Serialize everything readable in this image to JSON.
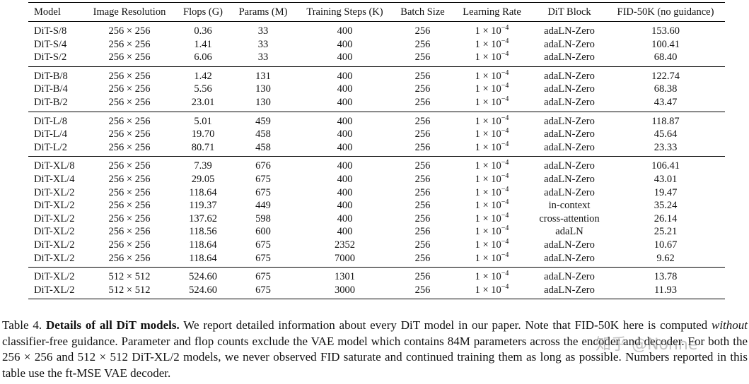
{
  "table": {
    "headers": [
      "Model",
      "Image Resolution",
      "Flops (G)",
      "Params (M)",
      "Training Steps (K)",
      "Batch Size",
      "Learning Rate",
      "DiT Block",
      "FID-50K (no guidance)"
    ],
    "groups": [
      [
        [
          "DiT-S/8",
          "256 × 256",
          "0.36",
          "33",
          "400",
          "256",
          {
            "mantissa": "1 × 10",
            "exponent": "−4"
          },
          "adaLN-Zero",
          "153.60"
        ],
        [
          "DiT-S/4",
          "256 × 256",
          "1.41",
          "33",
          "400",
          "256",
          {
            "mantissa": "1 × 10",
            "exponent": "−4"
          },
          "adaLN-Zero",
          "100.41"
        ],
        [
          "DiT-S/2",
          "256 × 256",
          "6.06",
          "33",
          "400",
          "256",
          {
            "mantissa": "1 × 10",
            "exponent": "−4"
          },
          "adaLN-Zero",
          "68.40"
        ]
      ],
      [
        [
          "DiT-B/8",
          "256 × 256",
          "1.42",
          "131",
          "400",
          "256",
          {
            "mantissa": "1 × 10",
            "exponent": "−4"
          },
          "adaLN-Zero",
          "122.74"
        ],
        [
          "DiT-B/4",
          "256 × 256",
          "5.56",
          "130",
          "400",
          "256",
          {
            "mantissa": "1 × 10",
            "exponent": "−4"
          },
          "adaLN-Zero",
          "68.38"
        ],
        [
          "DiT-B/2",
          "256 × 256",
          "23.01",
          "130",
          "400",
          "256",
          {
            "mantissa": "1 × 10",
            "exponent": "−4"
          },
          "adaLN-Zero",
          "43.47"
        ]
      ],
      [
        [
          "DiT-L/8",
          "256 × 256",
          "5.01",
          "459",
          "400",
          "256",
          {
            "mantissa": "1 × 10",
            "exponent": "−4"
          },
          "adaLN-Zero",
          "118.87"
        ],
        [
          "DiT-L/4",
          "256 × 256",
          "19.70",
          "458",
          "400",
          "256",
          {
            "mantissa": "1 × 10",
            "exponent": "−4"
          },
          "adaLN-Zero",
          "45.64"
        ],
        [
          "DiT-L/2",
          "256 × 256",
          "80.71",
          "458",
          "400",
          "256",
          {
            "mantissa": "1 × 10",
            "exponent": "−4"
          },
          "adaLN-Zero",
          "23.33"
        ]
      ],
      [
        [
          "DiT-XL/8",
          "256 × 256",
          "7.39",
          "676",
          "400",
          "256",
          {
            "mantissa": "1 × 10",
            "exponent": "−4"
          },
          "adaLN-Zero",
          "106.41"
        ],
        [
          "DiT-XL/4",
          "256 × 256",
          "29.05",
          "675",
          "400",
          "256",
          {
            "mantissa": "1 × 10",
            "exponent": "−4"
          },
          "adaLN-Zero",
          "43.01"
        ],
        [
          "DiT-XL/2",
          "256 × 256",
          "118.64",
          "675",
          "400",
          "256",
          {
            "mantissa": "1 × 10",
            "exponent": "−4"
          },
          "adaLN-Zero",
          "19.47"
        ],
        [
          "DiT-XL/2",
          "256 × 256",
          "119.37",
          "449",
          "400",
          "256",
          {
            "mantissa": "1 × 10",
            "exponent": "−4"
          },
          "in-context",
          "35.24"
        ],
        [
          "DiT-XL/2",
          "256 × 256",
          "137.62",
          "598",
          "400",
          "256",
          {
            "mantissa": "1 × 10",
            "exponent": "−4"
          },
          "cross-attention",
          "26.14"
        ],
        [
          "DiT-XL/2",
          "256 × 256",
          "118.56",
          "600",
          "400",
          "256",
          {
            "mantissa": "1 × 10",
            "exponent": "−4"
          },
          "adaLN",
          "25.21"
        ],
        [
          "DiT-XL/2",
          "256 × 256",
          "118.64",
          "675",
          "2352",
          "256",
          {
            "mantissa": "1 × 10",
            "exponent": "−4"
          },
          "adaLN-Zero",
          "10.67"
        ],
        [
          "DiT-XL/2",
          "256 × 256",
          "118.64",
          "675",
          "7000",
          "256",
          {
            "mantissa": "1 × 10",
            "exponent": "−4"
          },
          "adaLN-Zero",
          "9.62"
        ]
      ],
      [
        [
          "DiT-XL/2",
          "512 × 512",
          "524.60",
          "675",
          "1301",
          "256",
          {
            "mantissa": "1 × 10",
            "exponent": "−4"
          },
          "adaLN-Zero",
          "13.78"
        ],
        [
          "DiT-XL/2",
          "512 × 512",
          "524.60",
          "675",
          "3000",
          "256",
          {
            "mantissa": "1 × 10",
            "exponent": "−4"
          },
          "adaLN-Zero",
          "11.93"
        ]
      ]
    ]
  },
  "caption": [
    {
      "text": "Table 4. "
    },
    {
      "text": "Details of all DiT models.",
      "style": "bold"
    },
    {
      "text": " We report detailed information about every DiT model in our paper. Note that FID-50K here is computed "
    },
    {
      "text": "without",
      "style": "italic"
    },
    {
      "text": " classifier-free guidance. Parameter and flop counts exclude the VAE model which contains 84M parameters across the encoder and decoder. For both the 256 × 256 and 512 × 512 DiT-XL/2 models, we never observed FID saturate and continued training them as long as possible. Numbers reported in this table use the ft-MSE VAE decoder."
    }
  ],
  "watermark": "知乎 @Nonne"
}
